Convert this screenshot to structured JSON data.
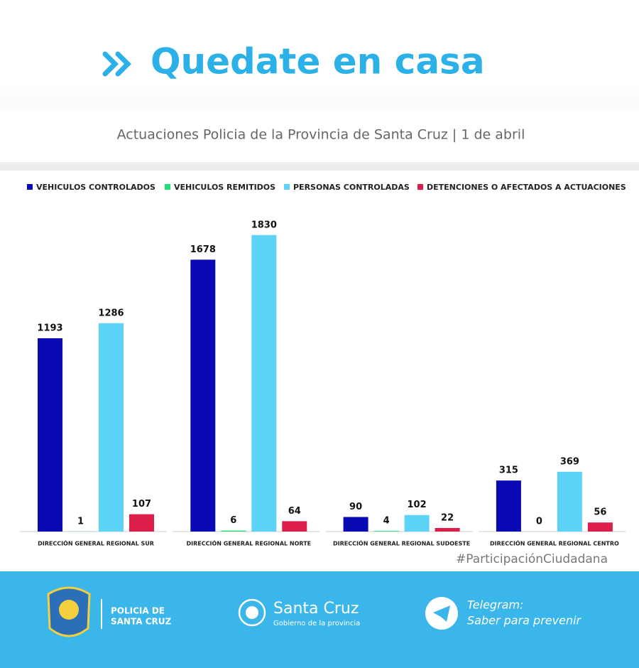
{
  "chart_data": {
    "type": "bar",
    "title": "Quedate en casa",
    "subtitle": "Actuaciones Policia de la Provincia de Santa Cruz | 1 de abril",
    "categories": [
      "DIRECCIÓN GENERAL REGIONAL SUR",
      "DIRECCIÓN GENERAL REGIONAL NORTE",
      "DIRECCIÓN GENERAL REGIONAL SUDOESTE",
      "DIRECCIÓN GENERAL REGIONAL CENTRO"
    ],
    "series": [
      {
        "name": "VEHICULOS CONTROLADOS",
        "color": "#0a0ab4",
        "values": [
          1193,
          1678,
          90,
          315
        ]
      },
      {
        "name": "VEHICULOS REMITIDOS",
        "color": "#22dd77",
        "values": [
          1,
          6,
          4,
          0
        ]
      },
      {
        "name": "PERSONAS CONTROLADAS",
        "color": "#5dd3f7",
        "values": [
          1286,
          1830,
          102,
          369
        ]
      },
      {
        "name": "DETENCIONES O AFECTADOS A ACTUACIONES",
        "color": "#dc1f4a",
        "values": [
          107,
          64,
          22,
          56
        ]
      }
    ]
  },
  "hashtag": "#ParticipaciónCiudadana",
  "footer": {
    "police": [
      "POLICIA DE",
      "SANTA CRUZ"
    ],
    "province": "Santa Cruz",
    "province_sub": "Gobierno de la provincia",
    "telegram": "Telegram:",
    "telegram_sub": "Saber para prevenir"
  }
}
